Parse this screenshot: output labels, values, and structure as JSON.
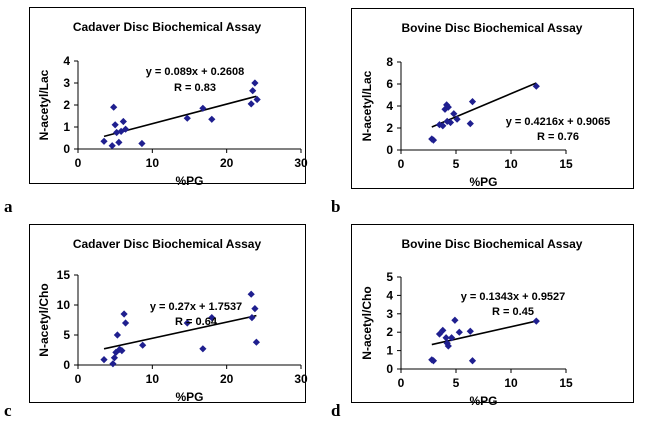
{
  "chart_data": [
    {
      "type": "scatter",
      "panel_letter": "a",
      "title": "Cadaver Disc Biochemical Assay",
      "xlabel": "%PG",
      "ylabel": "N-acetyl/Lac",
      "xlim": [
        0,
        30
      ],
      "ylim": [
        0,
        4
      ],
      "xticks": [
        "0",
        "10",
        "20",
        "30"
      ],
      "yticks": [
        "0",
        "1",
        "2",
        "3",
        "4"
      ],
      "xtick_values": [
        0,
        10,
        20,
        30
      ],
      "ytick_values": [
        0,
        1,
        2,
        3,
        4
      ],
      "equation": "y = 0.089x + 0.2608",
      "r_text": "R = 0.83",
      "trend": {
        "slope": 0.089,
        "intercept": 0.2608,
        "x_range": [
          3.5,
          24
        ]
      },
      "points": [
        {
          "x": 3.5,
          "y": 0.35
        },
        {
          "x": 4.6,
          "y": 0.15
        },
        {
          "x": 4.8,
          "y": 1.9
        },
        {
          "x": 5.0,
          "y": 1.1
        },
        {
          "x": 5.2,
          "y": 0.75
        },
        {
          "x": 5.5,
          "y": 0.3
        },
        {
          "x": 5.8,
          "y": 0.8
        },
        {
          "x": 6.1,
          "y": 1.25
        },
        {
          "x": 6.4,
          "y": 0.9
        },
        {
          "x": 8.6,
          "y": 0.25
        },
        {
          "x": 14.7,
          "y": 1.4
        },
        {
          "x": 16.8,
          "y": 1.85
        },
        {
          "x": 18.0,
          "y": 1.35
        },
        {
          "x": 23.3,
          "y": 2.05
        },
        {
          "x": 23.5,
          "y": 2.65
        },
        {
          "x": 23.8,
          "y": 3.0
        },
        {
          "x": 24.1,
          "y": 2.25
        }
      ]
    },
    {
      "type": "scatter",
      "panel_letter": "b",
      "title": "Bovine Disc Biochemical Assay",
      "xlabel": "%PG",
      "ylabel": "N-acetyl/Lac",
      "xlim": [
        0,
        15
      ],
      "ylim": [
        0,
        8
      ],
      "xticks": [
        "0",
        "5",
        "10",
        "15"
      ],
      "yticks": [
        "0",
        "2",
        "4",
        "6",
        "8"
      ],
      "xtick_values": [
        0,
        5,
        10,
        15
      ],
      "ytick_values": [
        0,
        2,
        4,
        6,
        8
      ],
      "equation": "y = 0.4216x + 0.9065",
      "r_text": "R = 0.76",
      "trend": {
        "slope": 0.4216,
        "intercept": 0.9065,
        "x_range": [
          2.8,
          12.3
        ]
      },
      "points": [
        {
          "x": 2.8,
          "y": 1.0
        },
        {
          "x": 2.95,
          "y": 0.9
        },
        {
          "x": 3.5,
          "y": 2.3
        },
        {
          "x": 3.8,
          "y": 2.2
        },
        {
          "x": 4.0,
          "y": 3.7
        },
        {
          "x": 4.15,
          "y": 4.1
        },
        {
          "x": 4.3,
          "y": 3.9
        },
        {
          "x": 4.2,
          "y": 2.6
        },
        {
          "x": 4.5,
          "y": 2.5
        },
        {
          "x": 4.8,
          "y": 3.3
        },
        {
          "x": 5.1,
          "y": 2.8
        },
        {
          "x": 6.3,
          "y": 2.4
        },
        {
          "x": 6.5,
          "y": 4.4
        },
        {
          "x": 12.3,
          "y": 5.8
        }
      ]
    },
    {
      "type": "scatter",
      "panel_letter": "c",
      "title": "Cadaver Disc Biochemical Assay",
      "xlabel": "%PG",
      "ylabel": "N-acetyl/Cho",
      "xlim": [
        0,
        30
      ],
      "ylim": [
        0,
        15
      ],
      "xticks": [
        "0",
        "10",
        "20",
        "30"
      ],
      "yticks": [
        "0",
        "5",
        "10",
        "15"
      ],
      "xtick_values": [
        0,
        10,
        20,
        30
      ],
      "ytick_values": [
        0,
        5,
        10,
        15
      ],
      "equation": "y = 0.27x + 1.7537",
      "r_text": "R = 0.64",
      "trend": {
        "slope": 0.27,
        "intercept": 1.7537,
        "x_range": [
          3.5,
          24
        ]
      },
      "points": [
        {
          "x": 3.5,
          "y": 0.9
        },
        {
          "x": 4.7,
          "y": 0.2
        },
        {
          "x": 4.9,
          "y": 1.2
        },
        {
          "x": 5.1,
          "y": 2.1
        },
        {
          "x": 5.3,
          "y": 5.0
        },
        {
          "x": 5.6,
          "y": 2.6
        },
        {
          "x": 5.9,
          "y": 2.4
        },
        {
          "x": 6.2,
          "y": 8.5
        },
        {
          "x": 6.4,
          "y": 7.0
        },
        {
          "x": 8.7,
          "y": 3.3
        },
        {
          "x": 14.7,
          "y": 7.0
        },
        {
          "x": 16.8,
          "y": 2.7
        },
        {
          "x": 18.0,
          "y": 7.9
        },
        {
          "x": 23.3,
          "y": 11.8
        },
        {
          "x": 23.4,
          "y": 7.9
        },
        {
          "x": 23.8,
          "y": 9.4
        },
        {
          "x": 24.0,
          "y": 3.8
        }
      ]
    },
    {
      "type": "scatter",
      "panel_letter": "d",
      "title": "Bovine Disc Biochemical Assay",
      "xlabel": "%PG",
      "ylabel": "N-acetyl/Cho",
      "xlim": [
        0,
        15
      ],
      "ylim": [
        0,
        5
      ],
      "xticks": [
        "0",
        "5",
        "10",
        "15"
      ],
      "yticks": [
        "0",
        "1",
        "2",
        "3",
        "4",
        "5"
      ],
      "xtick_values": [
        0,
        5,
        10,
        15
      ],
      "ytick_values": [
        0,
        1,
        2,
        3,
        4,
        5
      ],
      "equation": "y = 0.1343x + 0.9527",
      "r_text": "R = 0.45",
      "trend": {
        "slope": 0.1343,
        "intercept": 0.9527,
        "x_range": [
          2.8,
          12.3
        ]
      },
      "points": [
        {
          "x": 2.8,
          "y": 0.5
        },
        {
          "x": 2.95,
          "y": 0.45
        },
        {
          "x": 3.5,
          "y": 1.9
        },
        {
          "x": 3.8,
          "y": 2.1
        },
        {
          "x": 4.1,
          "y": 1.7
        },
        {
          "x": 4.2,
          "y": 1.4
        },
        {
          "x": 4.3,
          "y": 1.25
        },
        {
          "x": 4.6,
          "y": 1.7
        },
        {
          "x": 4.9,
          "y": 2.65
        },
        {
          "x": 5.3,
          "y": 2.0
        },
        {
          "x": 6.3,
          "y": 2.05
        },
        {
          "x": 6.5,
          "y": 0.45
        },
        {
          "x": 12.3,
          "y": 2.6
        }
      ]
    }
  ]
}
